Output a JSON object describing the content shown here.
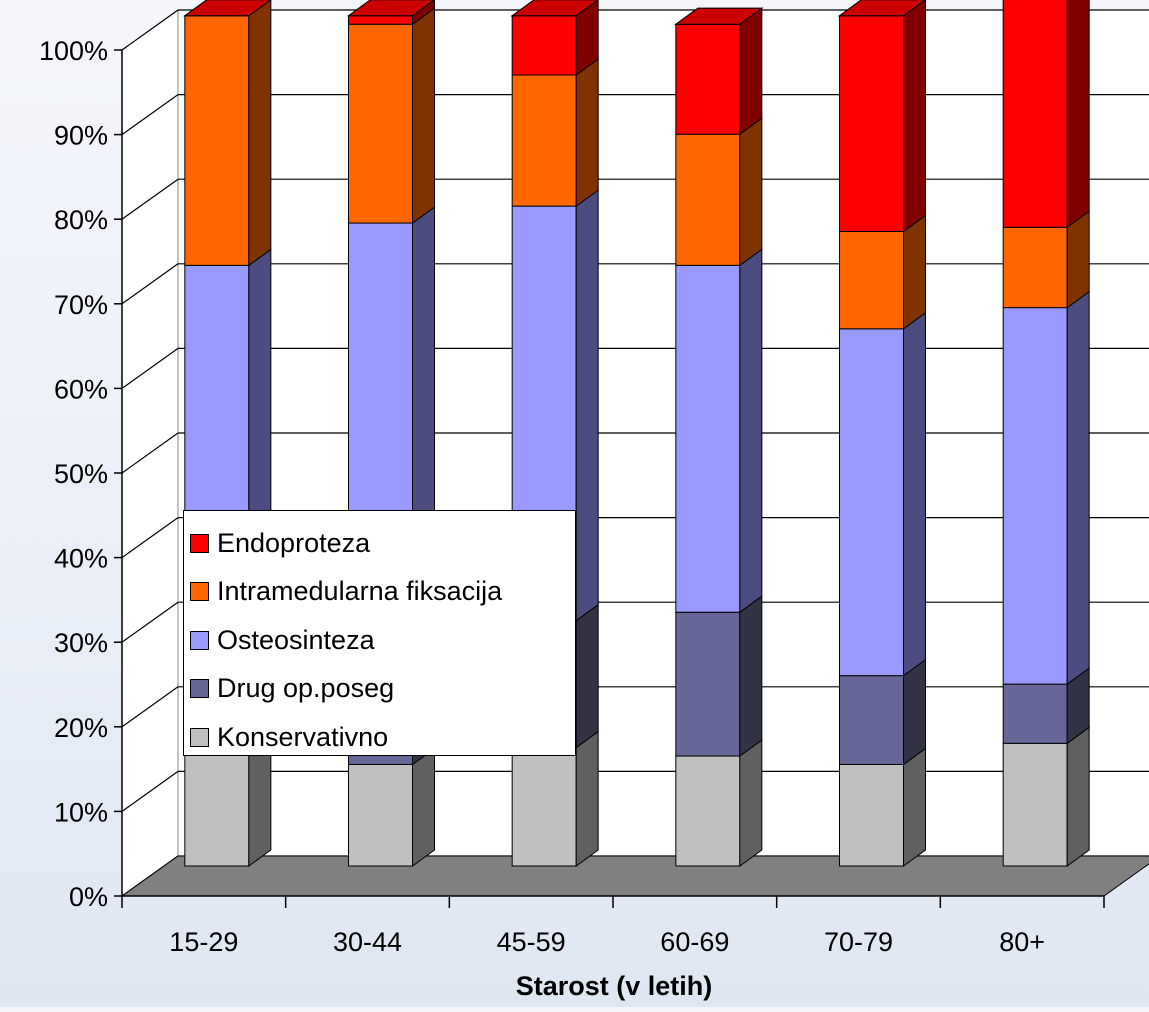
{
  "chart_data": {
    "type": "bar",
    "stacked": true,
    "percent": true,
    "three_d": true,
    "title": "",
    "xlabel": "Starost (v letih)",
    "ylabel": "",
    "ylim": [
      0,
      100
    ],
    "y_ticks": [
      "0%",
      "10%",
      "20%",
      "30%",
      "40%",
      "50%",
      "60%",
      "70%",
      "80%",
      "90%",
      "100%"
    ],
    "categories": [
      "15-29",
      "30-44",
      "45-59",
      "60-69",
      "70-79",
      "80+"
    ],
    "grid": true,
    "legend_position": "lower-left inside plot",
    "series": [
      {
        "name": "Konservativno",
        "color": "#c0c0c0",
        "side": "#606060",
        "values": [
          14,
          12,
          14,
          13,
          12,
          14.5
        ]
      },
      {
        "name": "Drug op.poseg",
        "color": "#666699",
        "side": "#333346",
        "values": [
          14,
          14,
          15,
          17,
          10.5,
          7
        ]
      },
      {
        "name": "Osteosinteza",
        "color": "#9999ff",
        "side": "#4c4c80",
        "values": [
          43,
          50,
          49,
          41,
          41,
          44.5
        ]
      },
      {
        "name": "Intramedularna fiksacija",
        "color": "#ff6600",
        "side": "#803300",
        "values": [
          29.5,
          23.5,
          15.5,
          15.5,
          11.5,
          9.5
        ]
      },
      {
        "name": "Endoproteza",
        "color": "#ff0000",
        "side": "#800000",
        "values": [
          0,
          1,
          7,
          13,
          25.5,
          27
        ]
      }
    ]
  }
}
